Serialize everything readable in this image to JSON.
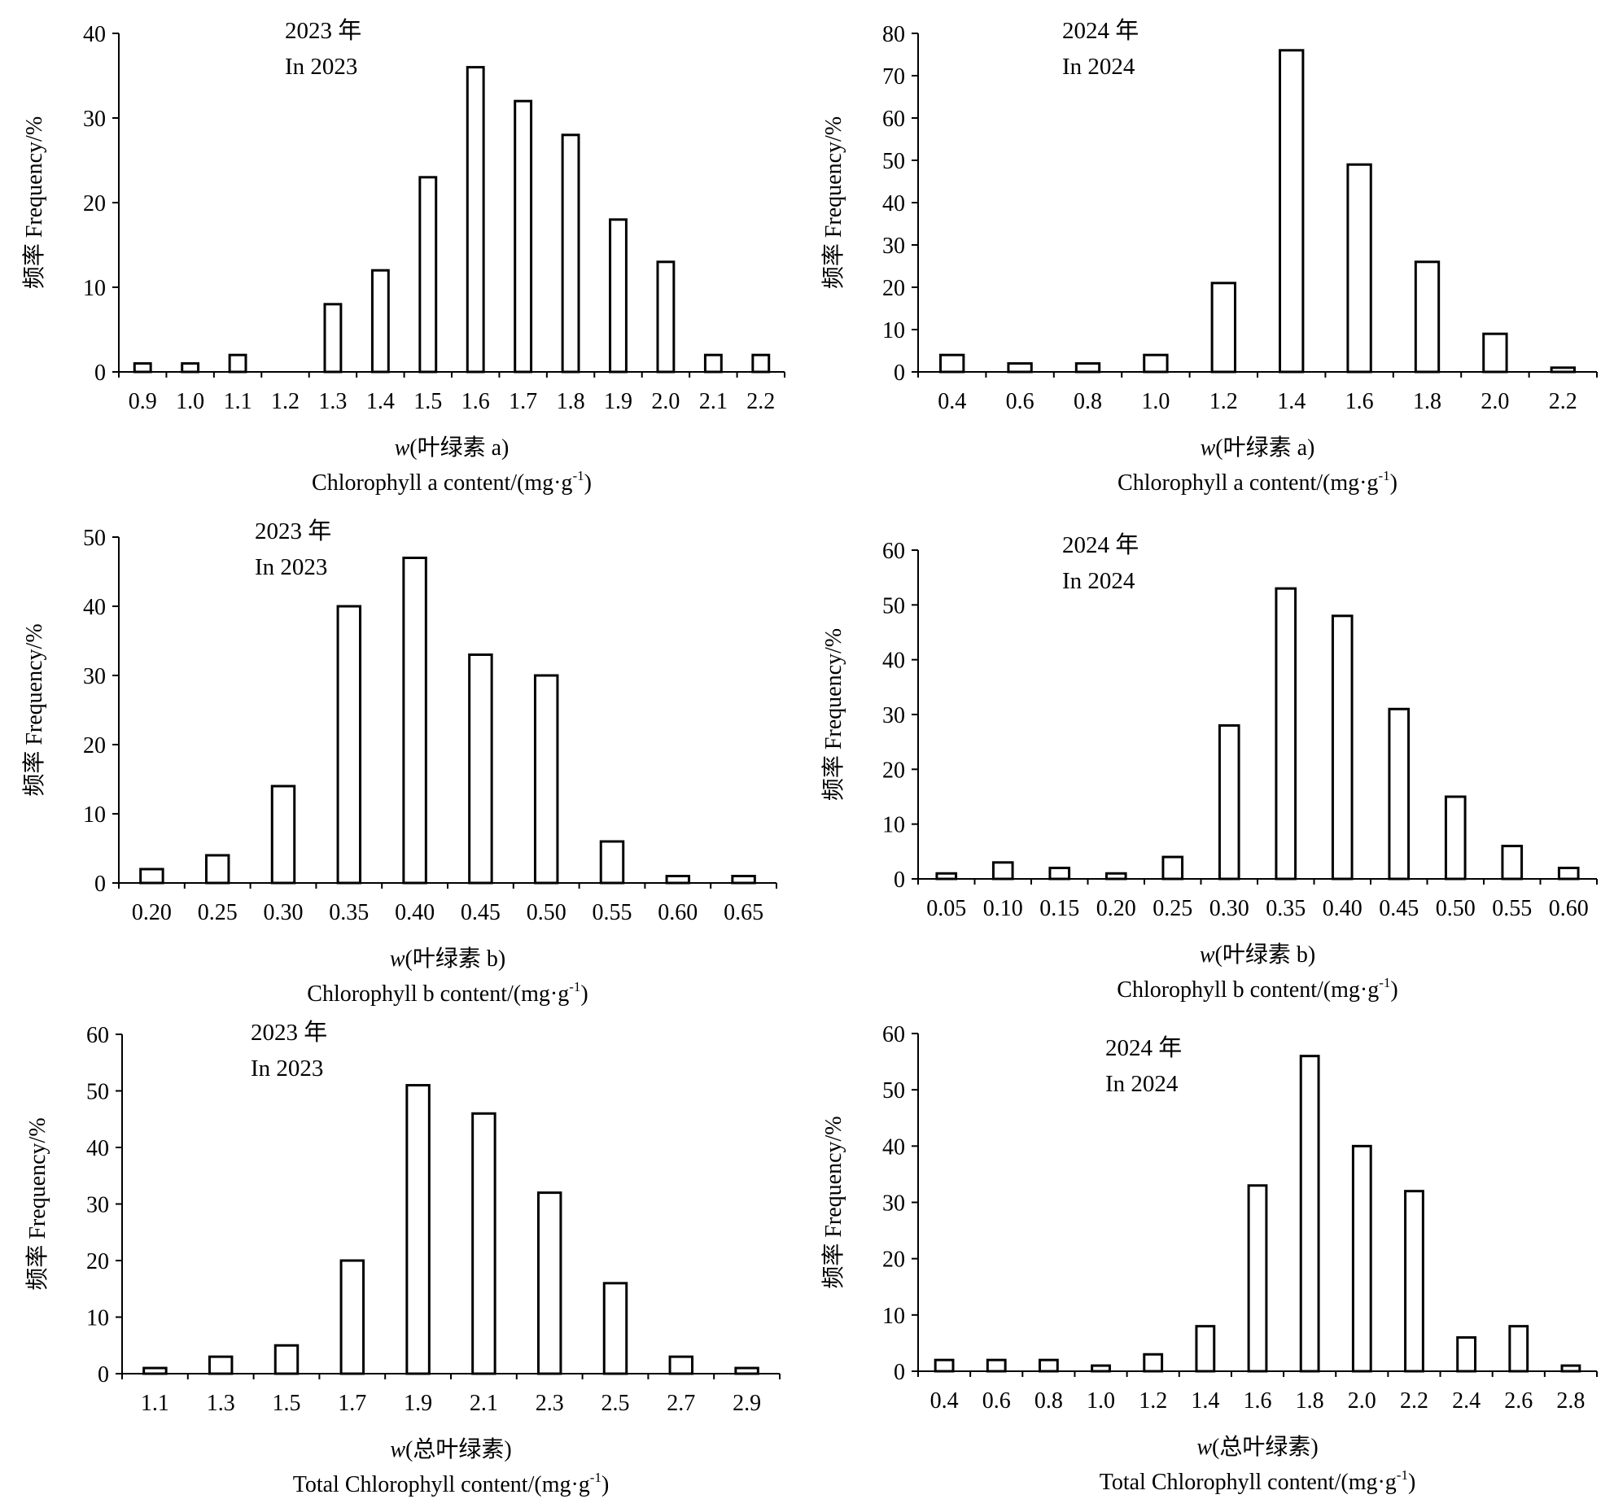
{
  "chart_data": [
    {
      "type": "bar",
      "title": "2023 年",
      "subtitle": "In 2023",
      "xlabel_prefix": "w",
      "xlabel": "(叶绿素 a)",
      "xlabel_en": "Chlorophyll a content/(mg·g",
      "xlabel_sup": "-1",
      "xlabel_close": ")",
      "ylabel": "频率 Frequency/%",
      "categories": [
        "0.9",
        "1.0",
        "1.1",
        "1.2",
        "1.3",
        "1.4",
        "1.5",
        "1.6",
        "1.7",
        "1.8",
        "1.9",
        "2.0",
        "2.1",
        "2.2"
      ],
      "values": [
        1,
        1,
        2,
        0,
        8,
        12,
        23,
        36,
        32,
        28,
        18,
        13,
        2,
        2
      ],
      "ylim": [
        0,
        40
      ],
      "yticks": [
        0,
        10,
        20,
        30,
        40
      ],
      "grid": false
    },
    {
      "type": "bar",
      "title": "2024 年",
      "subtitle": "In 2024",
      "xlabel_prefix": "w",
      "xlabel": "(叶绿素 a)",
      "xlabel_en": "Chlorophyll a content/(mg·g",
      "xlabel_sup": "-1",
      "xlabel_close": ")",
      "ylabel": "频率 Frequency/%",
      "categories": [
        "0.4",
        "0.6",
        "0.8",
        "1.0",
        "1.2",
        "1.4",
        "1.6",
        "1.8",
        "2.0",
        "2.2"
      ],
      "values": [
        4,
        2,
        2,
        4,
        21,
        76,
        49,
        26,
        9,
        1
      ],
      "ylim": [
        0,
        80
      ],
      "yticks": [
        0,
        10,
        20,
        30,
        40,
        50,
        60,
        70,
        80
      ],
      "grid": false
    },
    {
      "type": "bar",
      "title": "2023 年",
      "subtitle": "In 2023",
      "xlabel_prefix": "w",
      "xlabel": "(叶绿素 b)",
      "xlabel_en": "Chlorophyll b content/(mg·g",
      "xlabel_sup": "-1",
      "xlabel_close": ")",
      "ylabel": "频率 Frequency/%",
      "categories": [
        "0.20",
        "0.25",
        "0.30",
        "0.35",
        "0.40",
        "0.45",
        "0.50",
        "0.55",
        "0.60",
        "0.65"
      ],
      "values": [
        2,
        4,
        14,
        40,
        47,
        33,
        30,
        6,
        1,
        1
      ],
      "ylim": [
        0,
        50
      ],
      "yticks": [
        0,
        10,
        20,
        30,
        40,
        50
      ],
      "grid": false
    },
    {
      "type": "bar",
      "title": "2024 年",
      "subtitle": "In 2024",
      "xlabel_prefix": "w",
      "xlabel": "(叶绿素 b)",
      "xlabel_en": "Chlorophyll b content/(mg·g",
      "xlabel_sup": "-1",
      "xlabel_close": ")",
      "ylabel": "频率 Frequency/%",
      "categories": [
        "0.05",
        "0.10",
        "0.15",
        "0.20",
        "0.25",
        "0.30",
        "0.35",
        "0.40",
        "0.45",
        "0.50",
        "0.55",
        "0.60"
      ],
      "values": [
        1,
        3,
        2,
        1,
        4,
        28,
        53,
        48,
        31,
        15,
        6,
        2
      ],
      "ylim": [
        0,
        60
      ],
      "yticks": [
        0,
        10,
        20,
        30,
        40,
        50,
        60
      ],
      "grid": false
    },
    {
      "type": "bar",
      "title": "2023 年",
      "subtitle": "In 2023",
      "xlabel_prefix": "w",
      "xlabel": "(总叶绿素)",
      "xlabel_en": "Total Chlorophyll content/(mg·g",
      "xlabel_sup": "-1",
      "xlabel_close": ")",
      "ylabel": "频率 Frequency/%",
      "categories": [
        "1.1",
        "1.3",
        "1.5",
        "1.7",
        "1.9",
        "2.1",
        "2.3",
        "2.5",
        "2.7",
        "2.9"
      ],
      "values": [
        1,
        3,
        5,
        20,
        51,
        46,
        32,
        16,
        3,
        1
      ],
      "ylim": [
        0,
        60
      ],
      "yticks": [
        0,
        10,
        20,
        30,
        40,
        50,
        60
      ],
      "grid": false
    },
    {
      "type": "bar",
      "title": "2024 年",
      "subtitle": "In 2024",
      "xlabel_prefix": "w",
      "xlabel": "(总叶绿素)",
      "xlabel_en": "Total Chlorophyll content/(mg·g",
      "xlabel_sup": "-1",
      "xlabel_close": ")",
      "ylabel": "频率 Frequency/%",
      "categories": [
        "0.4",
        "0.6",
        "0.8",
        "1.0",
        "1.2",
        "1.4",
        "1.6",
        "1.8",
        "2.0",
        "2.2",
        "2.4",
        "2.6",
        "2.8"
      ],
      "values": [
        2,
        2,
        2,
        1,
        3,
        8,
        33,
        56,
        40,
        32,
        6,
        8,
        1
      ],
      "ylim": [
        0,
        60
      ],
      "yticks": [
        0,
        10,
        20,
        30,
        40,
        50,
        60
      ],
      "grid": false
    }
  ]
}
